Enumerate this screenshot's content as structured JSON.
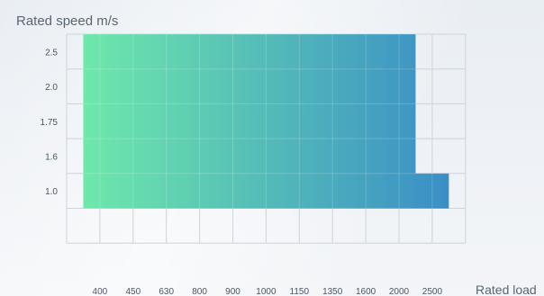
{
  "chart_data": {
    "type": "bar",
    "title": "",
    "xlabel": "Rated load",
    "ylabel": "Rated speed m/s",
    "categories": [
      "400",
      "450",
      "630",
      "800",
      "900",
      "1000",
      "1150",
      "1350",
      "1600",
      "2000",
      "2500"
    ],
    "y_ticks": [
      "1.0",
      "1.6",
      "1.75",
      "2.0",
      "2.5"
    ],
    "ranges": [
      {
        "speed": "2.5",
        "from_load": "400",
        "to_load": "2000"
      },
      {
        "speed": "2.0",
        "from_load": "400",
        "to_load": "2000"
      },
      {
        "speed": "1.75",
        "from_load": "400",
        "to_load": "2000"
      },
      {
        "speed": "1.6",
        "from_load": "400",
        "to_load": "2000"
      },
      {
        "speed": "1.0",
        "from_load": "400",
        "to_load": "2500"
      }
    ],
    "colors": {
      "start": "#6ee8ab",
      "end": "#3a8ec6",
      "grid": "#c4cbd3"
    },
    "grid": true
  }
}
